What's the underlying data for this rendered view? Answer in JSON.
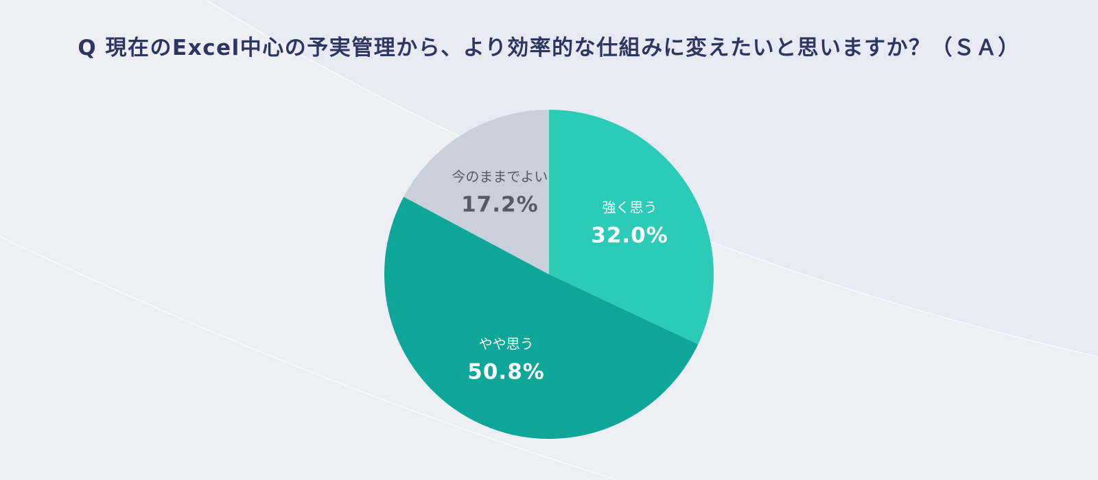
{
  "chart_data": {
    "type": "pie",
    "title": "Q 現在のExcel中心の予実管理から、より効率的な仕組みに変えたいと思いますか？（ＳＡ）",
    "slices": [
      {
        "label": "強く思う",
        "value": 32.0,
        "display": "32.0%",
        "color": "#2bcbb7",
        "text_color": "#ffffff"
      },
      {
        "label": "やや思う",
        "value": 50.8,
        "display": "50.8%",
        "color": "#0da699",
        "text_color": "#ffffff"
      },
      {
        "label": "今のままでよい",
        "value": 17.2,
        "display": "17.2%",
        "color": "#c9cfdb",
        "text_color": "#555b66"
      }
    ],
    "start": "12 o'clock",
    "direction": "clockwise"
  }
}
